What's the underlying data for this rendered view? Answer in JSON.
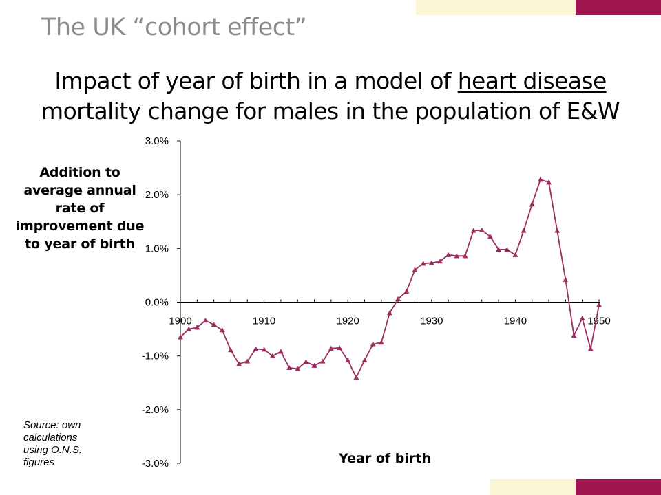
{
  "slide": {
    "title": "The UK “cohort effect”",
    "subtitle_line1_prefix": "Impact of year of birth in a model of ",
    "subtitle_line1_underlined": "heart disease",
    "subtitle_line2": "mortality change for males in the population of E&W",
    "source_note": "Source: own calculations using O.N.S. figures"
  },
  "colors": {
    "title": "#8C8C8C",
    "series": "#9B2D5F",
    "accent_maroon": "#A0144F",
    "accent_cream": "#FAF6D4"
  },
  "chart_data": {
    "type": "line",
    "xlabel": "Year of birth",
    "ylabel": "Addition to average annual rate of improvement due to year of birth",
    "xlim": [
      1900,
      1950
    ],
    "ylim": [
      -3.0,
      3.0
    ],
    "x_ticks": [
      "1900",
      "1910",
      "1920",
      "1930",
      "1940",
      "1950"
    ],
    "y_ticks": [
      "3.0%",
      "2.0%",
      "1.0%",
      "0.0%",
      "-1.0%",
      "-2.0%",
      "-3.0%"
    ],
    "marker": "triangle",
    "x": [
      1900,
      1901,
      1902,
      1903,
      1904,
      1905,
      1906,
      1907,
      1908,
      1909,
      1910,
      1911,
      1912,
      1913,
      1914,
      1915,
      1916,
      1917,
      1918,
      1919,
      1920,
      1921,
      1922,
      1923,
      1924,
      1925,
      1926,
      1927,
      1928,
      1929,
      1930,
      1931,
      1932,
      1933,
      1934,
      1935,
      1936,
      1937,
      1938,
      1939,
      1940,
      1941,
      1942,
      1943,
      1944,
      1945,
      1946,
      1947,
      1948,
      1949,
      1950
    ],
    "y": [
      -0.65,
      -0.5,
      -0.47,
      -0.34,
      -0.42,
      -0.52,
      -0.89,
      -1.15,
      -1.1,
      -0.87,
      -0.88,
      -1.0,
      -0.92,
      -1.22,
      -1.24,
      -1.11,
      -1.18,
      -1.1,
      -0.86,
      -0.85,
      -1.08,
      -1.4,
      -1.08,
      -0.78,
      -0.75,
      -0.2,
      0.06,
      0.2,
      0.6,
      0.72,
      0.73,
      0.76,
      0.88,
      0.86,
      0.86,
      1.33,
      1.34,
      1.22,
      0.98,
      0.98,
      0.88,
      1.33,
      1.82,
      2.28,
      2.23,
      1.33,
      0.42,
      -0.62,
      -0.3,
      -0.87,
      -0.05
    ]
  }
}
